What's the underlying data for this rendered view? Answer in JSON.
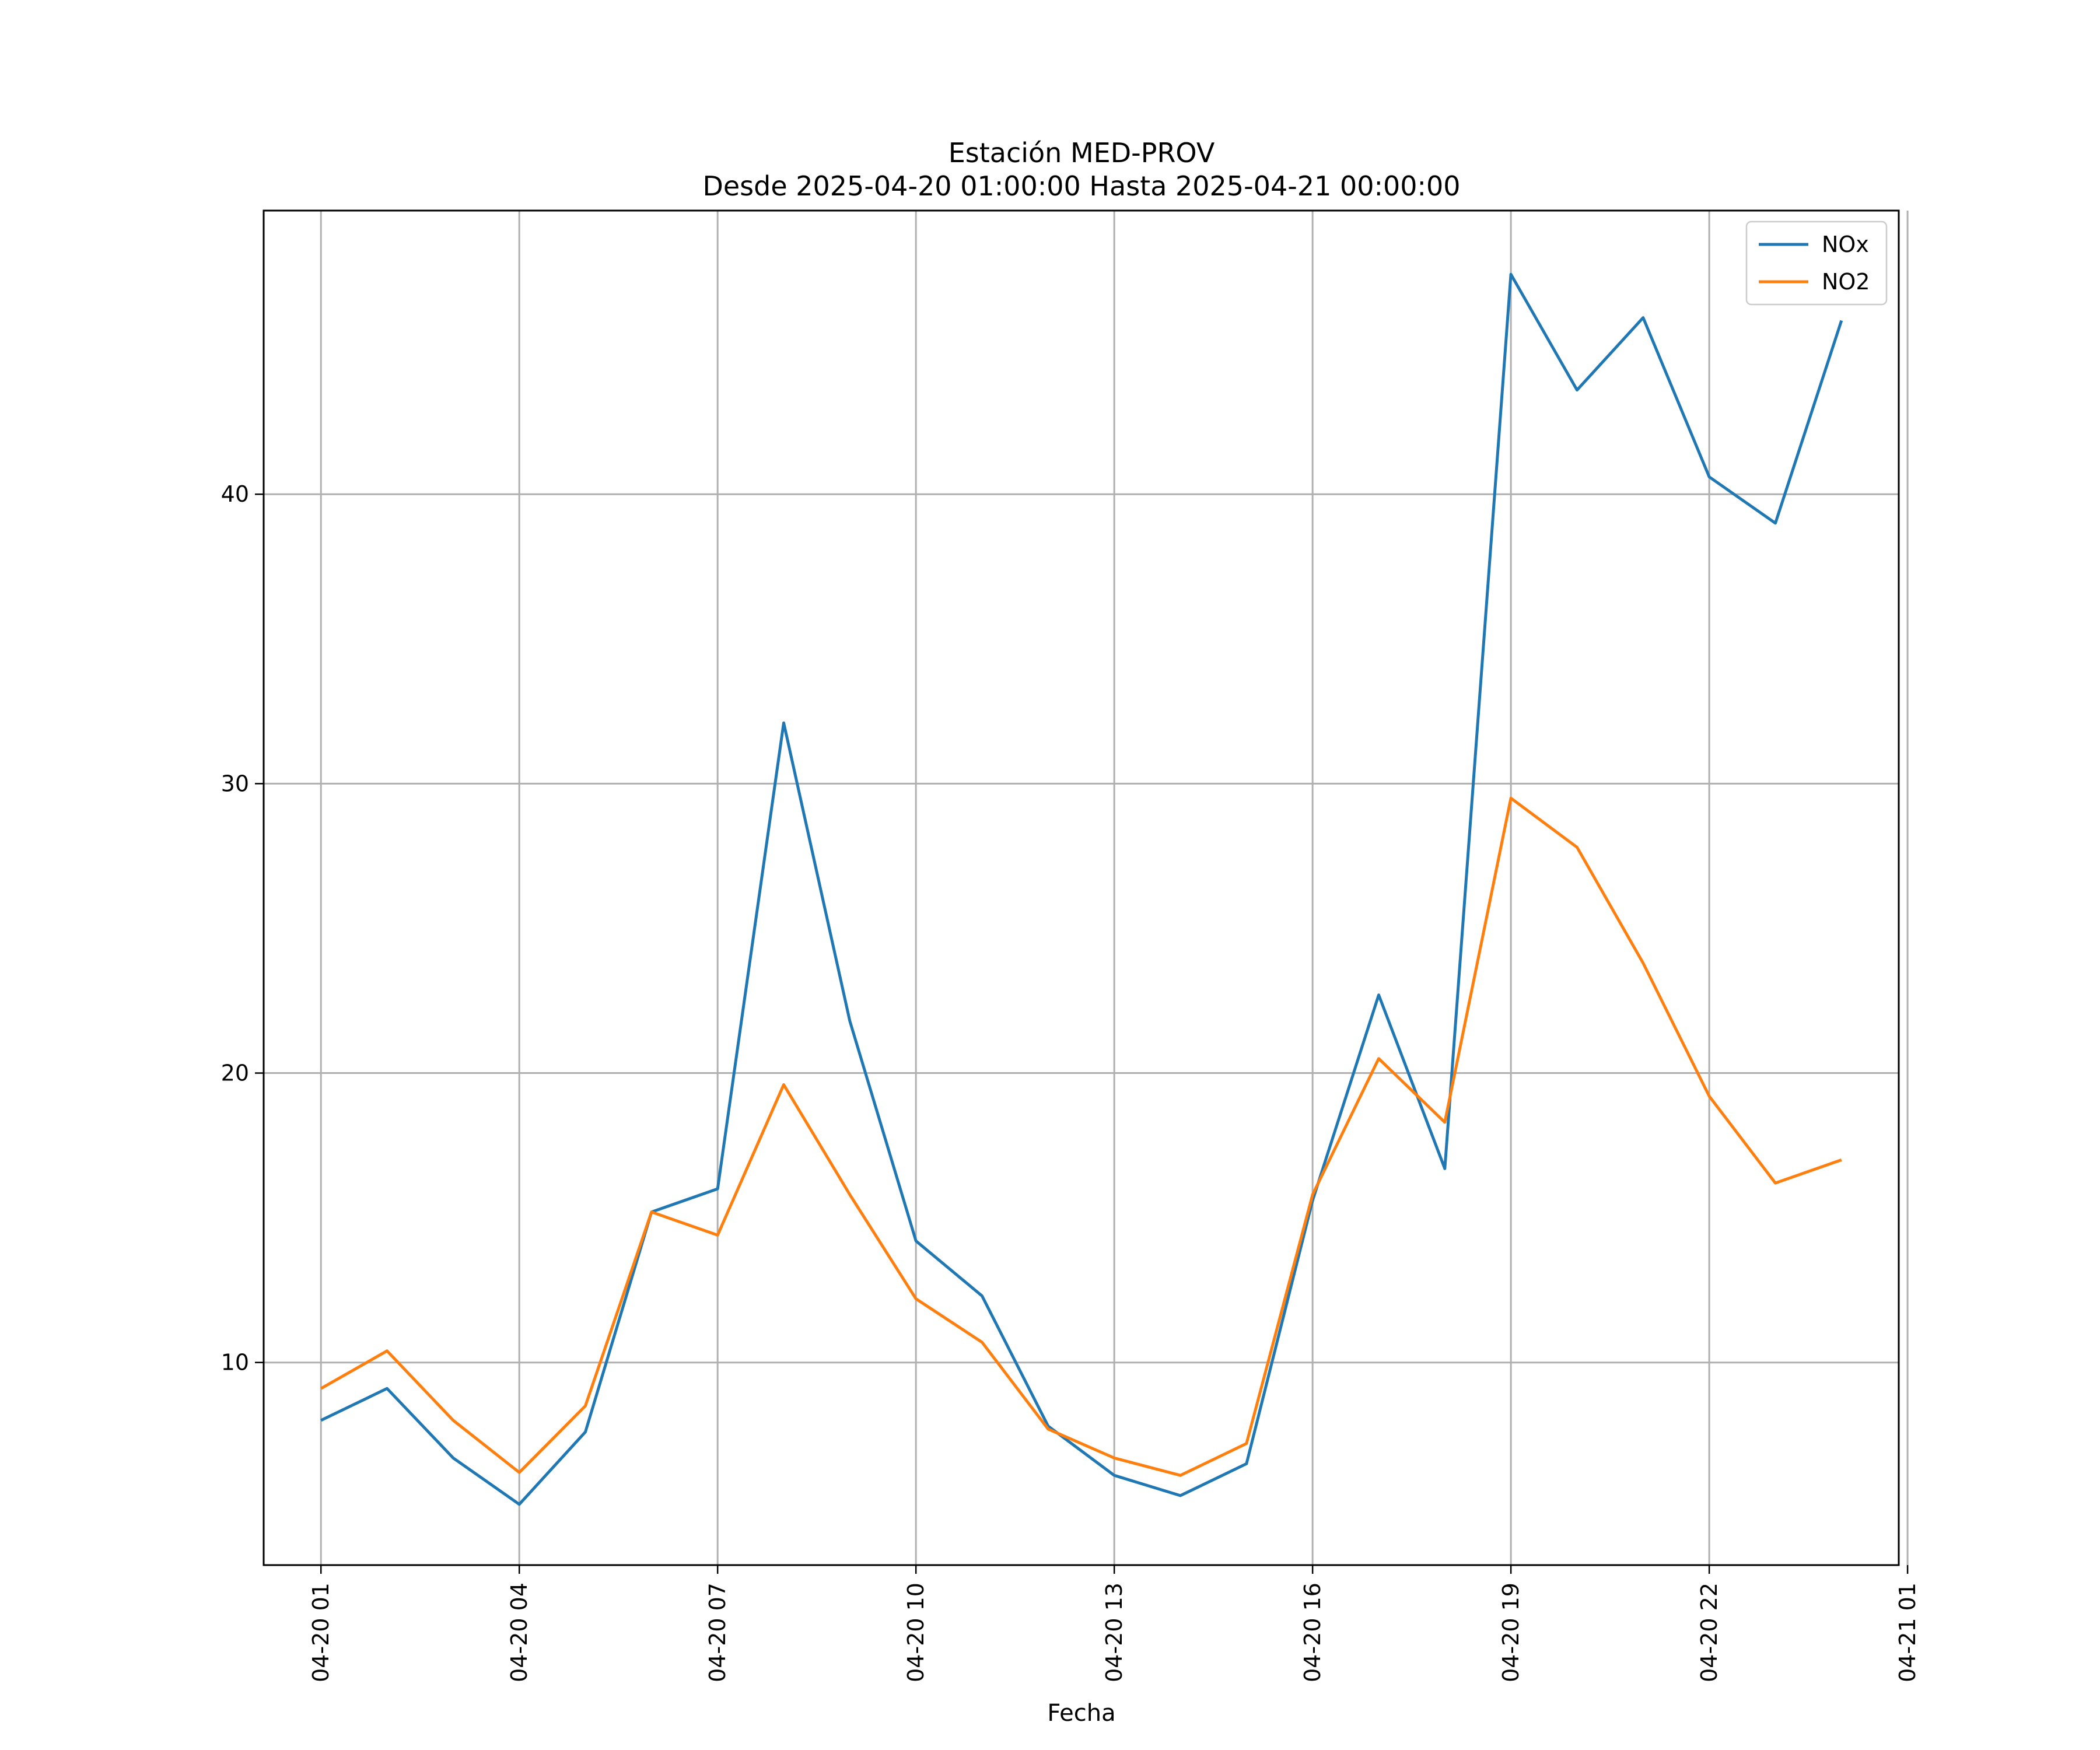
{
  "chart_data": {
    "type": "line",
    "title": "Estación MED-PROV",
    "subtitle": "Desde 2025-04-20 01:00:00 Hasta 2025-04-21 00:00:00",
    "xlabel": "Fecha",
    "ylabel": "",
    "x": [
      "2025-04-20 01:00",
      "2025-04-20 02:00",
      "2025-04-20 03:00",
      "2025-04-20 04:00",
      "2025-04-20 05:00",
      "2025-04-20 06:00",
      "2025-04-20 07:00",
      "2025-04-20 08:00",
      "2025-04-20 09:00",
      "2025-04-20 10:00",
      "2025-04-20 11:00",
      "2025-04-20 12:00",
      "2025-04-20 13:00",
      "2025-04-20 14:00",
      "2025-04-20 15:00",
      "2025-04-20 16:00",
      "2025-04-20 17:00",
      "2025-04-20 18:00",
      "2025-04-20 19:00",
      "2025-04-20 20:00",
      "2025-04-20 21:00",
      "2025-04-20 22:00",
      "2025-04-20 23:00",
      "2025-04-21 00:00"
    ],
    "series": [
      {
        "name": "NOx",
        "color": "#1f77b4",
        "values": [
          8.0,
          9.1,
          6.7,
          5.1,
          7.6,
          15.2,
          16.0,
          32.1,
          21.8,
          14.2,
          12.3,
          7.8,
          6.1,
          5.4,
          6.5,
          15.6,
          22.7,
          16.7,
          47.6,
          43.6,
          46.1,
          40.6,
          39.0,
          46.0
        ]
      },
      {
        "name": "NO2",
        "color": "#ff7f0e",
        "values": [
          9.1,
          10.4,
          8.0,
          6.2,
          8.5,
          15.2,
          14.4,
          19.6,
          15.8,
          12.2,
          10.7,
          7.7,
          6.7,
          6.1,
          7.2,
          15.8,
          20.5,
          18.3,
          29.5,
          27.8,
          23.8,
          19.2,
          16.2,
          17.0
        ]
      }
    ],
    "xlim": [
      "2025-04-20 00:08",
      "2025-04-21 00:52"
    ],
    "ylim": [
      3.0,
      49.8
    ],
    "yticks": [
      10,
      20,
      30,
      40
    ],
    "xticks": [
      "2025-04-20 01:00",
      "2025-04-20 04:00",
      "2025-04-20 07:00",
      "2025-04-20 10:00",
      "2025-04-20 13:00",
      "2025-04-20 16:00",
      "2025-04-20 19:00",
      "2025-04-20 22:00",
      "2025-04-21 01:00"
    ],
    "xtick_labels": [
      "04-20 01",
      "04-20 04",
      "04-20 07",
      "04-20 10",
      "04-20 13",
      "04-20 16",
      "04-20 19",
      "04-20 22",
      "04-21 01"
    ],
    "grid": true,
    "legend_position": "top-right"
  }
}
